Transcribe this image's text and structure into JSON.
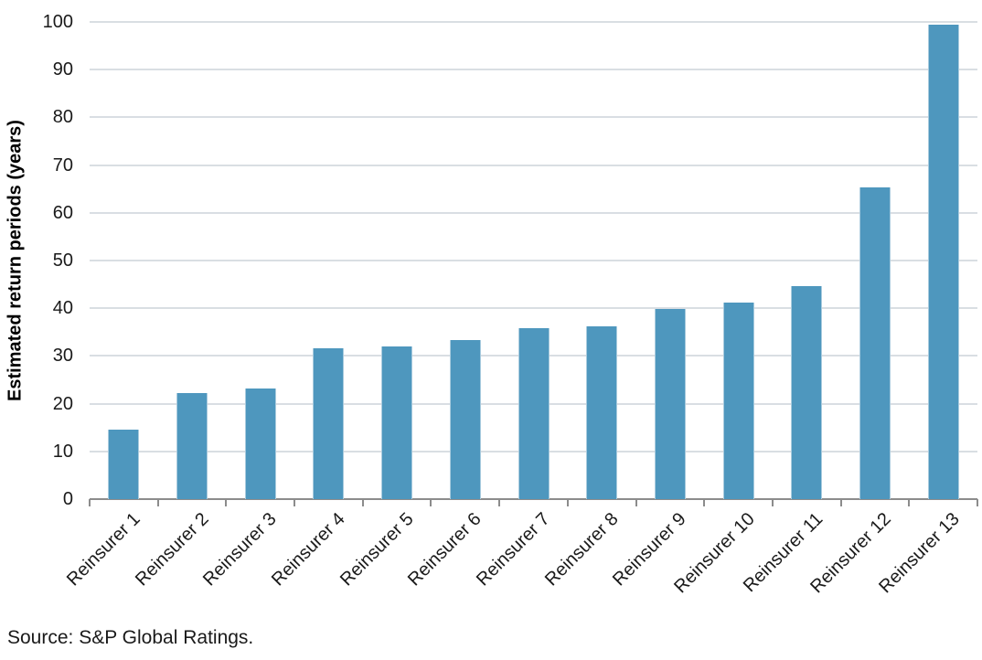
{
  "chart_data": {
    "type": "bar",
    "title": "",
    "categories": [
      "Reinsurer 1",
      "Reinsurer 2",
      "Reinsurer 3",
      "Reinsurer 4",
      "Reinsurer 5",
      "Reinsurer 6",
      "Reinsurer 7",
      "Reinsurer 8",
      "Reinsurer 9",
      "Reinsurer 10",
      "Reinsurer 11",
      "Reinsurer 12",
      "Reinsurer 13"
    ],
    "values": [
      14.5,
      22.2,
      23.1,
      31.7,
      31.9,
      33.4,
      35.9,
      36.2,
      39.9,
      41.1,
      44.6,
      65.4,
      99.5
    ],
    "xlabel": "",
    "ylabel": "Estimated return periods (years)",
    "ylim": [
      0,
      100
    ],
    "yticks": [
      0,
      10,
      20,
      30,
      40,
      50,
      60,
      70,
      80,
      90,
      100
    ],
    "grid": "horizontal",
    "legend_position": "none",
    "bar_color": "#4E97BE",
    "bar_edge_color": "#A9CBDE",
    "gridline_color": "#D9DEE3",
    "axis_color": "#8C8C8C",
    "text_color": "#1A1A1A"
  },
  "footer": {
    "source": "Source: S&P Global Ratings."
  }
}
